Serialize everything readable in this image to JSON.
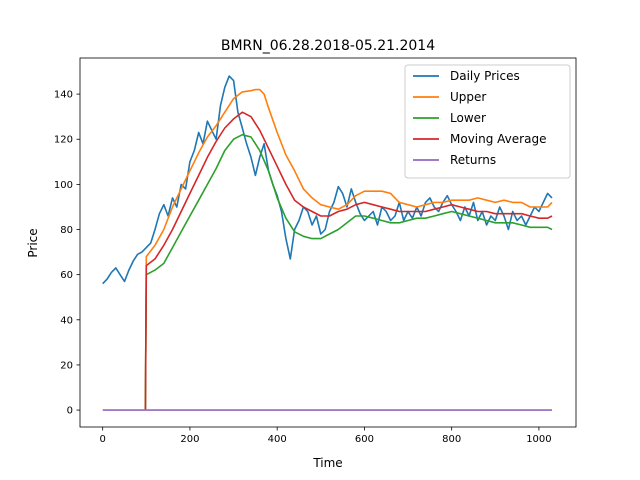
{
  "chart_data": {
    "type": "line",
    "title": "BMRN_06.28.2018-05.21.2014",
    "xlabel": "Time",
    "ylabel": "Price",
    "xlim": [
      -52,
      1085
    ],
    "ylim": [
      -7.5,
      156
    ],
    "xticks": [
      0,
      200,
      400,
      600,
      800,
      1000
    ],
    "yticks": [
      0,
      20,
      40,
      60,
      80,
      100,
      120,
      140
    ],
    "legend_position": "top-right",
    "grid": false,
    "series": [
      {
        "name": "Daily Prices",
        "color": "#1f77b4",
        "x": [
          0,
          10,
          20,
          30,
          40,
          50,
          60,
          70,
          80,
          90,
          100,
          110,
          120,
          130,
          140,
          150,
          160,
          170,
          180,
          190,
          200,
          210,
          220,
          230,
          240,
          250,
          260,
          270,
          280,
          290,
          300,
          310,
          320,
          330,
          340,
          350,
          360,
          370,
          380,
          390,
          400,
          410,
          420,
          430,
          440,
          450,
          460,
          470,
          480,
          490,
          500,
          510,
          520,
          530,
          540,
          550,
          560,
          570,
          580,
          590,
          600,
          610,
          620,
          630,
          640,
          650,
          660,
          670,
          680,
          690,
          700,
          710,
          720,
          730,
          740,
          750,
          760,
          770,
          780,
          790,
          800,
          810,
          820,
          830,
          840,
          850,
          860,
          870,
          880,
          890,
          900,
          910,
          920,
          930,
          940,
          950,
          960,
          970,
          980,
          990,
          1000,
          1010,
          1020,
          1030
        ],
        "values": [
          56,
          58,
          61,
          63,
          60,
          57,
          62,
          66,
          69,
          70,
          72,
          74,
          80,
          87,
          91,
          86,
          94,
          90,
          100,
          98,
          110,
          115,
          123,
          118,
          128,
          124,
          120,
          135,
          143,
          148,
          146,
          132,
          125,
          118,
          112,
          104,
          112,
          118,
          106,
          100,
          95,
          88,
          76,
          67,
          80,
          84,
          90,
          88,
          82,
          86,
          78,
          80,
          88,
          92,
          99,
          96,
          90,
          98,
          92,
          87,
          84,
          86,
          88,
          82,
          90,
          88,
          84,
          86,
          92,
          84,
          88,
          85,
          90,
          86,
          92,
          94,
          90,
          88,
          92,
          95,
          91,
          88,
          84,
          90,
          86,
          92,
          84,
          88,
          82,
          86,
          84,
          90,
          86,
          80,
          88,
          84,
          86,
          82,
          86,
          90,
          88,
          92,
          96,
          94
        ]
      },
      {
        "name": "Upper",
        "color": "#ff7f0e",
        "x": [
          98,
          100,
          120,
          140,
          160,
          180,
          200,
          220,
          240,
          260,
          280,
          300,
          320,
          340,
          350,
          360,
          370,
          380,
          400,
          420,
          440,
          460,
          480,
          500,
          520,
          540,
          560,
          580,
          600,
          620,
          640,
          660,
          680,
          700,
          720,
          740,
          760,
          780,
          800,
          820,
          840,
          860,
          880,
          900,
          920,
          940,
          960,
          980,
          1000,
          1020,
          1030
        ],
        "values": [
          0,
          68,
          73,
          80,
          90,
          98,
          106,
          114,
          121,
          126,
          132,
          138,
          141,
          141.5,
          142,
          142,
          140,
          134,
          123,
          113,
          106,
          98,
          94,
          91,
          90,
          89,
          91,
          95,
          97,
          97,
          97,
          96,
          92,
          91,
          90,
          91,
          92,
          92,
          93,
          93,
          93,
          94,
          93,
          92,
          93,
          92,
          92,
          90,
          90,
          90,
          92
        ]
      },
      {
        "name": "Lower",
        "color": "#2ca02c",
        "x": [
          98,
          100,
          120,
          140,
          160,
          180,
          200,
          220,
          240,
          260,
          280,
          300,
          320,
          340,
          360,
          380,
          400,
          420,
          440,
          460,
          480,
          500,
          520,
          540,
          560,
          580,
          600,
          620,
          640,
          660,
          680,
          700,
          720,
          740,
          760,
          780,
          800,
          820,
          840,
          860,
          880,
          900,
          920,
          940,
          960,
          980,
          1000,
          1020,
          1030
        ],
        "values": [
          0,
          60,
          62,
          65,
          72,
          79,
          86,
          93,
          100,
          107,
          115,
          120,
          122,
          121,
          115,
          106,
          94,
          85,
          79,
          77,
          76,
          76,
          78,
          80,
          83,
          86,
          86,
          85,
          84,
          83,
          83,
          84,
          85,
          85,
          86,
          87,
          88,
          87,
          86,
          85,
          84,
          83,
          83,
          83,
          82,
          81,
          81,
          81,
          80
        ]
      },
      {
        "name": "Moving Average",
        "color": "#d62728",
        "x": [
          98,
          100,
          120,
          140,
          160,
          180,
          200,
          220,
          240,
          260,
          280,
          300,
          320,
          340,
          360,
          380,
          400,
          420,
          440,
          460,
          480,
          500,
          520,
          540,
          560,
          580,
          600,
          620,
          640,
          660,
          680,
          700,
          720,
          740,
          760,
          780,
          800,
          820,
          840,
          860,
          880,
          900,
          920,
          940,
          960,
          980,
          1000,
          1020,
          1030
        ],
        "values": [
          0,
          64,
          67,
          73,
          80,
          88,
          96,
          104,
          112,
          119,
          125,
          129,
          132,
          130,
          124,
          116,
          108,
          100,
          93,
          90,
          88,
          86,
          86,
          88,
          89,
          91,
          92,
          91,
          90,
          89,
          88,
          88,
          88,
          88,
          89,
          90,
          91,
          90,
          89,
          88,
          88,
          87,
          87,
          87,
          87,
          86,
          85,
          85,
          86
        ]
      },
      {
        "name": "Returns",
        "color": "#9467bd",
        "x": [
          0,
          100,
          200,
          300,
          400,
          500,
          600,
          700,
          800,
          900,
          1000,
          1030
        ],
        "values": [
          0,
          0,
          0,
          0,
          0,
          0,
          0,
          0,
          0,
          0,
          0,
          0
        ]
      }
    ]
  }
}
